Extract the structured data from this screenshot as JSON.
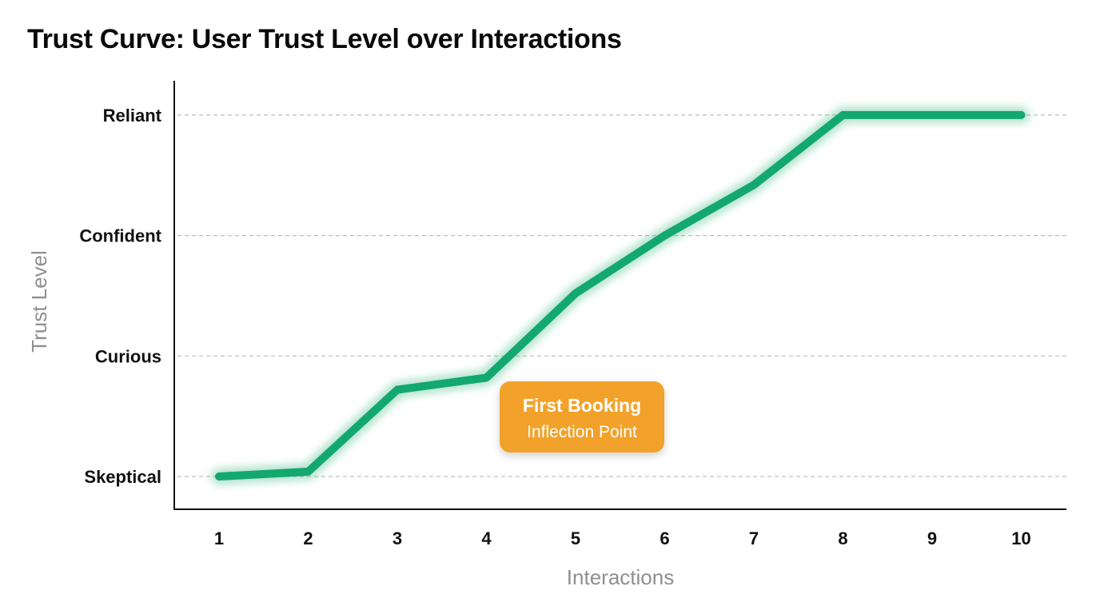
{
  "chart_data": {
    "type": "line",
    "title": "Trust Curve: User Trust Level over Interactions",
    "xlabel": "Interactions",
    "ylabel": "Trust Level",
    "x": [
      1,
      2,
      3,
      4,
      5,
      6,
      7,
      8,
      9,
      10
    ],
    "y_categories": [
      "Skeptical",
      "Curious",
      "Confident",
      "Reliant"
    ],
    "ylim": [
      0,
      3
    ],
    "series": [
      {
        "values": [
          0,
          0.04,
          0.72,
          0.82,
          1.52,
          2.0,
          2.42,
          3.0,
          3.0,
          3.0
        ],
        "color": "#12a870"
      }
    ],
    "grid": "horizontal dashed",
    "annotation": {
      "title": "First Booking",
      "subtitle": "Inflection Point",
      "color": "#f2a22c"
    }
  }
}
